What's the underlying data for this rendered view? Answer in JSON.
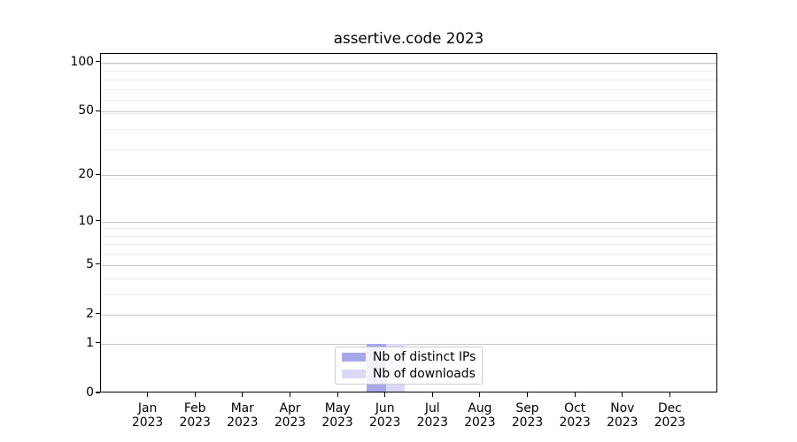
{
  "title": "assertive.code 2023",
  "chart_data": {
    "type": "bar",
    "title": "assertive.code 2023",
    "categories": [
      "Jan",
      "Feb",
      "Mar",
      "Apr",
      "May",
      "Jun",
      "Jul",
      "Aug",
      "Sep",
      "Oct",
      "Nov",
      "Dec"
    ],
    "category_year": "2023",
    "series": [
      {
        "name": "Nb of distinct IPs",
        "color": "#a7a7ec",
        "values": [
          0,
          0,
          0,
          0,
          0,
          1,
          0,
          0,
          0,
          0,
          0,
          0
        ]
      },
      {
        "name": "Nb of downloads",
        "color": "#dadaf6",
        "values": [
          0,
          0,
          0,
          0,
          0,
          1,
          0,
          0,
          0,
          0,
          0,
          0
        ]
      }
    ],
    "yscale": "log1p",
    "ylim": [
      0,
      113
    ],
    "yticks": [
      100,
      50,
      20,
      10,
      5,
      2,
      1,
      0
    ],
    "minor_gridlines": [
      3,
      4,
      6,
      7,
      8,
      9,
      19,
      29,
      39,
      49,
      59,
      69,
      79,
      89,
      99
    ],
    "grid": true,
    "legend_position": "lower center"
  }
}
